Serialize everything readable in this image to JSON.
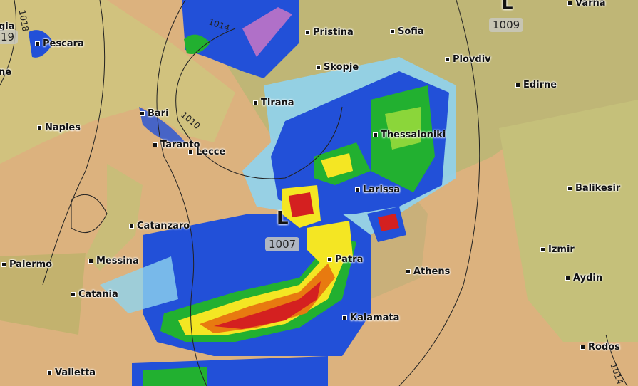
{
  "map": {
    "colors": {
      "land": "#d6c27e",
      "land_green": "#b9c47a",
      "sea": "#dcaa78",
      "rain_light": "#8fd3ef",
      "rain_blue": "#2250d8",
      "rain_green": "#22b030",
      "rain_yellow": "#f4e623",
      "rain_red": "#d42020",
      "rain_purple": "#b070c8"
    },
    "cities": [
      {
        "name": "Pescara"
      },
      {
        "name": "Pristina"
      },
      {
        "name": "Sofia"
      },
      {
        "name": "Varna"
      },
      {
        "name": "Plovdiv"
      },
      {
        "name": "Skopje"
      },
      {
        "name": "Edirne"
      },
      {
        "name": "Tirana"
      },
      {
        "name": "Bari"
      },
      {
        "name": "Naples"
      },
      {
        "name": "Thessaloniki"
      },
      {
        "name": "Taranto"
      },
      {
        "name": "Lecce"
      },
      {
        "name": "Larissa"
      },
      {
        "name": "Balikesir"
      },
      {
        "name": "Catanzaro"
      },
      {
        "name": "Patra"
      },
      {
        "name": "Izmir"
      },
      {
        "name": "Palermo"
      },
      {
        "name": "Messina"
      },
      {
        "name": "Athens"
      },
      {
        "name": "Aydin"
      },
      {
        "name": "Catania"
      },
      {
        "name": "Kalamata"
      },
      {
        "name": "Rodos"
      },
      {
        "name": "Valletta"
      }
    ],
    "partial_labels": [
      "gia",
      "ne"
    ],
    "pressure_centers": [
      {
        "symbol": "L",
        "value": "1009"
      },
      {
        "symbol": "L",
        "value": "1007"
      },
      {
        "symbol": "",
        "value": "19"
      }
    ],
    "isobar_labels": [
      "1018",
      "1014",
      "1010",
      "1014"
    ]
  }
}
